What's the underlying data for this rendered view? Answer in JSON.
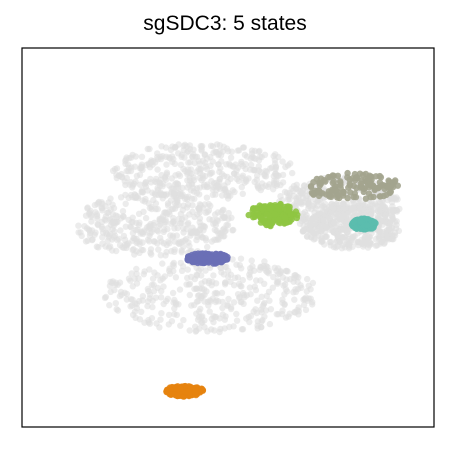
{
  "chart_data": {
    "type": "scatter",
    "title": "sgSDC3: 5 states",
    "xlabel": "",
    "ylabel": "",
    "axes_ticks": false,
    "grid": false,
    "legend": "none",
    "background_cells": {
      "color": "#e0e0e0",
      "clusters": [
        {
          "name": "",
          "x": [
            0.22,
            0.66
          ],
          "y": [
            0.6,
            0.75
          ]
        },
        {
          "name": "",
          "x": [
            0.12,
            0.52
          ],
          "y": [
            0.45,
            0.62
          ]
        },
        {
          "name": "",
          "x": [
            0.2,
            0.72
          ],
          "y": [
            0.25,
            0.45
          ]
        },
        {
          "name": "",
          "x": [
            0.62,
            0.92
          ],
          "y": [
            0.52,
            0.66
          ]
        },
        {
          "name": "",
          "x": [
            0.68,
            0.92
          ],
          "y": [
            0.47,
            0.58
          ]
        }
      ]
    },
    "series": [
      {
        "name": "",
        "color": "#a3a48e",
        "x": [
          0.68,
          0.92
        ],
        "y": [
          0.6,
          0.67
        ]
      },
      {
        "name": "",
        "color": "#8fc543",
        "x": [
          0.55,
          0.67
        ],
        "y": [
          0.53,
          0.59
        ]
      },
      {
        "name": "",
        "color": "#5bbcae",
        "x": [
          0.8,
          0.86
        ],
        "y": [
          0.52,
          0.55
        ]
      },
      {
        "name": "",
        "color": "#6a6fb6",
        "x": [
          0.4,
          0.5
        ],
        "y": [
          0.43,
          0.46
        ]
      },
      {
        "name": "",
        "color": "#e6830e",
        "x": [
          0.35,
          0.44
        ],
        "y": [
          0.08,
          0.11
        ]
      }
    ]
  }
}
